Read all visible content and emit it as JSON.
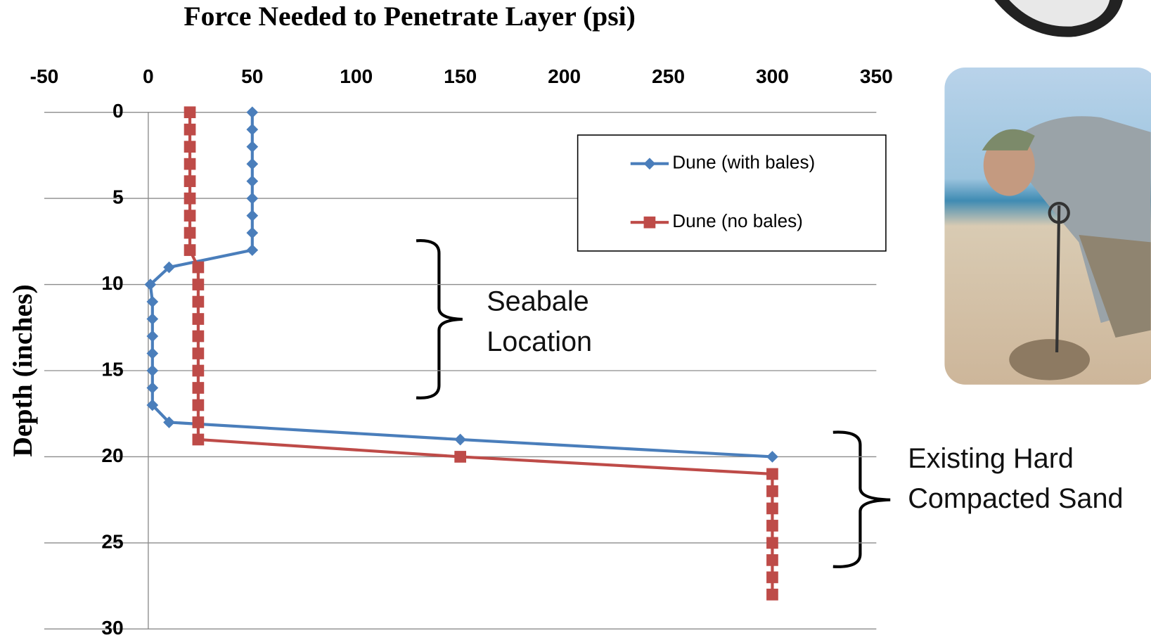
{
  "chart_data": {
    "type": "scatter-line",
    "title": "Force Needed to Penetrate Layer (psi)",
    "y_label": "Depth (inches)",
    "xlim": [
      -50,
      350
    ],
    "xticks": [
      -50,
      0,
      50,
      100,
      150,
      200,
      250,
      300,
      350
    ],
    "ylim": [
      0,
      30
    ],
    "yticks": [
      0,
      5,
      10,
      15,
      20,
      25,
      30
    ],
    "y_inverted": true,
    "grid": true,
    "legend": "upper right",
    "series": [
      {
        "name": "Dune (with bales)",
        "color": "#4a7ebb",
        "marker": "diamond",
        "x": [
          50,
          50,
          50,
          50,
          50,
          50,
          50,
          50,
          50,
          10,
          1,
          2,
          2,
          2,
          2,
          2,
          2,
          2,
          10,
          150,
          300
        ],
        "y": [
          0,
          1,
          2,
          3,
          4,
          5,
          6,
          7,
          8,
          9,
          10,
          11,
          12,
          13,
          14,
          15,
          16,
          17,
          18,
          19,
          20
        ]
      },
      {
        "name": "Dune (no bales)",
        "color": "#be4b48",
        "marker": "square",
        "x": [
          20,
          20,
          20,
          20,
          20,
          20,
          20,
          20,
          20,
          24,
          24,
          24,
          24,
          24,
          24,
          24,
          24,
          24,
          24,
          24,
          150,
          300,
          300,
          300,
          300,
          300,
          300,
          300,
          300
        ],
        "y": [
          0,
          1,
          2,
          3,
          4,
          5,
          6,
          7,
          8,
          9,
          10,
          11,
          12,
          13,
          14,
          15,
          16,
          17,
          18,
          19,
          20,
          21,
          22,
          23,
          24,
          25,
          26,
          27,
          28
        ]
      }
    ],
    "annotations": [
      [
        "Seabale",
        "Location"
      ],
      [
        "Existing Hard",
        "Compacted Sand"
      ]
    ]
  }
}
